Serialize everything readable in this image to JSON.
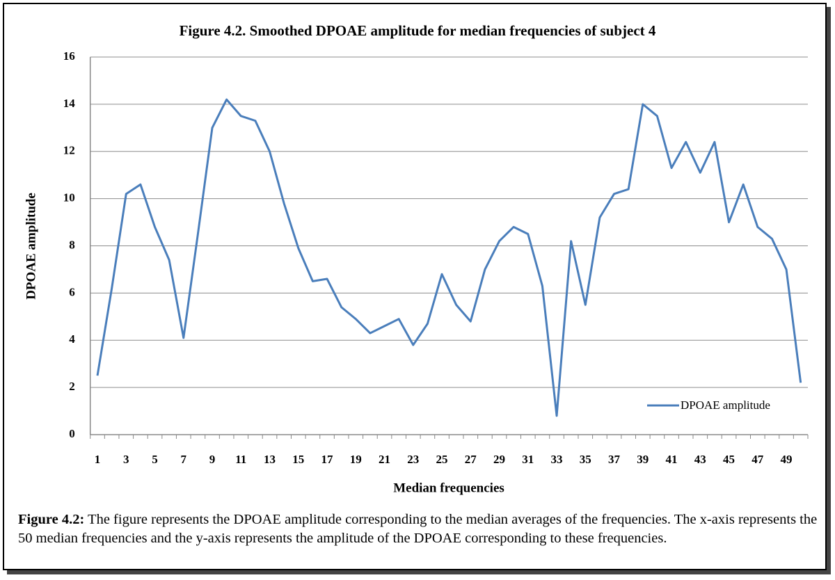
{
  "chart_data": {
    "type": "line",
    "title": "Figure 4.2. Smoothed DPOAE amplitude  for median frequencies of subject 4",
    "x_label": "Median frequencies",
    "y_label": "DPOAE  amplitude",
    "categories": [
      1,
      null,
      3,
      null,
      5,
      null,
      7,
      null,
      9,
      null,
      11,
      null,
      13,
      null,
      15,
      null,
      17,
      null,
      19,
      null,
      21,
      null,
      23,
      null,
      25,
      null,
      27,
      null,
      29,
      null,
      31,
      null,
      33,
      null,
      35,
      null,
      37,
      null,
      39,
      null,
      41,
      null,
      43,
      null,
      45,
      null,
      47,
      null,
      49,
      null
    ],
    "series": [
      {
        "name": "DPOAE amplitude",
        "color": "#4a7ebb",
        "values": [
          2.5,
          6.2,
          10.2,
          10.6,
          8.8,
          7.4,
          4.1,
          8.5,
          13.0,
          14.2,
          13.5,
          13.3,
          12.0,
          9.8,
          7.9,
          6.5,
          6.6,
          5.4,
          4.9,
          4.3,
          4.6,
          4.9,
          3.8,
          4.7,
          6.8,
          5.5,
          4.8,
          7.0,
          8.2,
          8.8,
          8.5,
          6.3,
          0.8,
          8.2,
          5.5,
          9.2,
          10.2,
          10.4,
          14.0,
          13.5,
          11.3,
          12.4,
          11.1,
          12.4,
          9.0,
          10.6,
          8.8,
          8.3,
          7.0,
          2.2
        ]
      }
    ],
    "ylim": [
      0,
      16
    ],
    "yticks": [
      0,
      2,
      4,
      6,
      8,
      10,
      12,
      14,
      16
    ],
    "grid": true,
    "legend": "lower right"
  },
  "caption": {
    "label": "Figure 4.2:",
    "text": "The figure represents the DPOAE amplitude corresponding to the median averages of the frequencies. The x-axis represents the 50 median frequencies and the y-axis represents the amplitude of the DPOAE corresponding to these frequencies."
  }
}
